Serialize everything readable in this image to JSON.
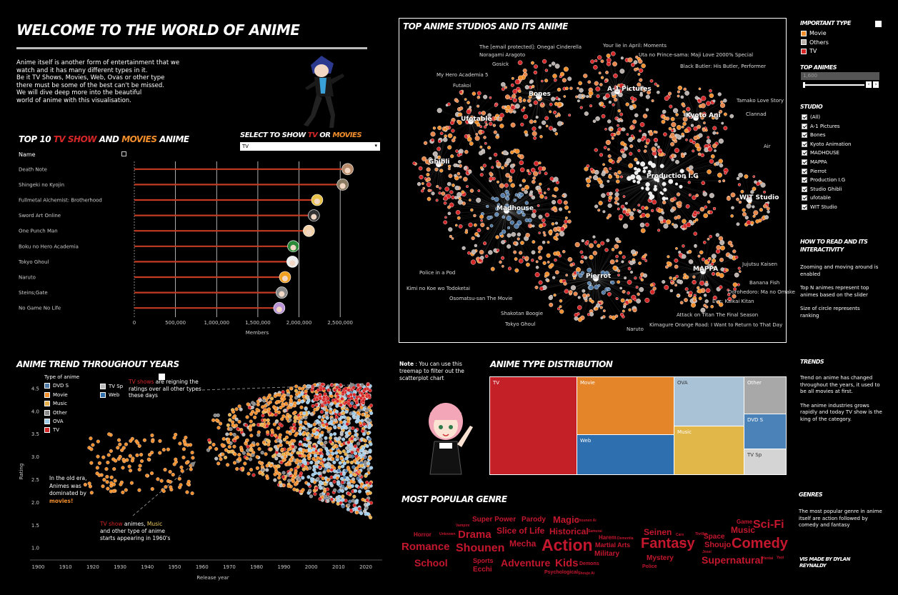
{
  "header": {
    "title": "WELCOME TO THE WORLD OF ANIME",
    "intro": [
      "Anime itself is another form of entertainment that we",
      "watch and it has many different types in it.",
      "Be it TV Shows, Movies, Web, Ovas or other type",
      "there must be some of the best can't be missed.",
      "We will dive deep more into the beautiful",
      "world of anime with this visualisation."
    ]
  },
  "top10": {
    "title_a": "TOP 10 ",
    "title_tv": "TV SHOW",
    "title_and": " AND ",
    "title_movies": "MOVIES",
    "title_b": " ANIME",
    "selector_title_a": "SELECT TO SHOW ",
    "selector_tv": "TV",
    "selector_or": " OR ",
    "selector_movies": "MOVIES",
    "selector_value": "TV",
    "name_header": "Name",
    "x_label": "Members",
    "colors": {
      "bar": "#c23b22",
      "axis": "#888"
    }
  },
  "studios_panel": {
    "title": "TOP ANIME STUDIOS AND ITS ANIME",
    "clusters": [
      "Bones",
      "A-1 Pictures",
      "Ufotable",
      "Kyoto Ani",
      "Ghibli",
      "Production I.G",
      "Madhouse",
      "WIT Studio",
      "MAPPA",
      "Pierrot"
    ],
    "anime_labels": [
      "The [email protected]: Onegai Cinderella",
      "Noragami Aragoto",
      "Gosick",
      "My Hero Academia 5",
      "Futakoi",
      "Your lie in April: Moments",
      "Uta no Prince-sama: Maji Love 2000% Special",
      "Black Butler: His Butler, Performer",
      "Tamako Love Story",
      "Clannad",
      "Air",
      "Jujutsu Kaisen",
      "Banana Fish",
      "Dorohedoro: Ma no Omake",
      "Eve: Kaikai Kitan",
      "Attack on Titan The Final Season",
      "Kimagure Orange Road: I Want to Return to That Day",
      "Naruto",
      "Tokyo Ghoul",
      "Shakotan Boogie",
      "Osomatsu-san The Movie",
      "Kimi no Koe wo Todoketai",
      "Police in a Pod"
    ]
  },
  "sidebar": {
    "important_type_title": "IMPORTANT TYPE",
    "types": [
      {
        "label": "Movie",
        "color": "#f28e2b"
      },
      {
        "label": "Others",
        "color": "#bab0ac"
      },
      {
        "label": "TV",
        "color": "#d62728"
      }
    ],
    "top_animes_title": "TOP ANIMES",
    "top_animes_value": "1,600",
    "studio_title": "STUDIO",
    "studios": [
      "(All)",
      "A-1 Pictures",
      "Bones",
      "Kyoto Animation",
      "MADHOUSE",
      "MAPPA",
      "Pierrot",
      "Production I.G",
      "Studio Ghibli",
      "ufotable",
      "WIT Studio"
    ],
    "how_title": "HOW TO READ AND ITS INTERACTIVITY",
    "how_texts": [
      "Zooming and moving around is enabled",
      "Top N animes represent top animes based on the slider",
      "Size of circle represents ranking"
    ],
    "trends_title": "TRENDS",
    "trends_texts": [
      "Trend on anime has changed throughout the years, it used to be all movies at first.",
      "The anime industries grows rapidly and today TV show is the king of the category."
    ],
    "genres_title": "GENRES",
    "genres_text": "The most popular genre in anime itself are action followed by comedy and fantasy",
    "credit": "VIS MADE BY DYLAN REYNALDY"
  },
  "trend": {
    "title": "ANIME TREND THROUGHOUT YEARS",
    "legend_title": "Type of anime",
    "legend_left": [
      {
        "label": "DVD S",
        "color": "#4e79a7"
      },
      {
        "label": "Movie",
        "color": "#f28e2b"
      },
      {
        "label": "Music",
        "color": "#e8b04a"
      },
      {
        "label": "Other",
        "color": "#888888"
      },
      {
        "label": "OVA",
        "color": "#a0cbe8"
      },
      {
        "label": "TV",
        "color": "#d62728"
      }
    ],
    "legend_right": [
      {
        "label": "TV Sp",
        "color": "#bbbbbb"
      },
      {
        "label": "Web",
        "color": "#2f6fad"
      }
    ],
    "annotation_top_red": "TV shows",
    "annotation_top_rest": " are reigning the ratings over all other types these days",
    "annotation_old_a": "In the old era, Animes was dominated by ",
    "annotation_old_b": "movies!",
    "annotation_1960_red": "TV show",
    "annotation_1960_mid": " animes, ",
    "annotation_1960_yellow": "Music",
    "annotation_1960_rest": " and other type of anime starts appearing in 1960's"
  },
  "type_dist": {
    "note_bold": "Note",
    "note_rest": " : You can use this treemap to filter out the scatterplot chart",
    "title": "ANIME TYPE DISTRIBUTION",
    "cells": [
      {
        "label": "TV",
        "color": "#c42027"
      },
      {
        "label": "Movie",
        "color": "#e5852a"
      },
      {
        "label": "Web",
        "color": "#2e6fb0"
      },
      {
        "label": "OVA",
        "color": "#a9c2d6"
      },
      {
        "label": "Music",
        "color": "#e2b74a"
      },
      {
        "label": "Other",
        "color": "#a8a8a8"
      },
      {
        "label": "DVD S",
        "color": "#4b82b8"
      },
      {
        "label": "TV Sp",
        "color": "#d4d4d4"
      }
    ]
  },
  "genre": {
    "title": "MOST POPULAR GENRE",
    "words": [
      "Super Power",
      "Parody",
      "Magic",
      "Shounen Ai",
      "Horror",
      "Unknown",
      "Vampire",
      "Drama",
      "Slice of Life",
      "Historical",
      "Samurai",
      "Romance",
      "Shounen",
      "Mecha",
      "Action",
      "Martial Arts",
      "Harem",
      "Dementia",
      "Military",
      "School",
      "Sports",
      "Ecchi",
      "Adventure",
      "Kids",
      "Demons",
      "Psychological",
      "Shoujo Ai",
      "Seinen",
      "Cars",
      "Thriller",
      "Fantasy",
      "Yuri",
      "Space",
      "Shoujo",
      "Josei",
      "Game",
      "Music",
      "Sci-Fi",
      "Comedy",
      "Mystery",
      "Police",
      "Supernatural",
      "Hentai",
      "Yaoi"
    ]
  },
  "chart_data": [
    {
      "type": "bar",
      "title": "TOP 10 TV SHOW AND MOVIES ANIME",
      "categories": [
        "Death Note",
        "Shingeki no Kyojin",
        "Fullmetal Alchemist: Brotherhood",
        "Sword Art Online",
        "One Punch Man",
        "Boku no Hero Academia",
        "Tokyo Ghoul",
        "Naruto",
        "Steins;Gate",
        "No Game No Life"
      ],
      "values": [
        2590000,
        2530000,
        2220000,
        2180000,
        2120000,
        1930000,
        1920000,
        1830000,
        1790000,
        1760000
      ],
      "xlabel": "Members",
      "xlim": [
        0,
        2750000
      ],
      "ticks": [
        "0",
        "500,000",
        "1,000,000",
        "1,500,000",
        "2,000,000",
        "2,500,000"
      ],
      "grid": true
    },
    {
      "type": "scatter",
      "title": "ANIME TREND THROUGHOUT YEARS",
      "xlabel": "Release year",
      "ylabel": "Rating",
      "xlim": [
        1897,
        2026
      ],
      "ylim": [
        0.8,
        4.75
      ],
      "xticks": [
        "1900",
        "1910",
        "1920",
        "1930",
        "1940",
        "1950",
        "1960",
        "1970",
        "1980",
        "1990",
        "2000",
        "2010",
        "2020"
      ],
      "yticks": [
        "1.0",
        "1.5",
        "2.0",
        "2.5",
        "3.0",
        "3.5",
        "4.0",
        "4.5"
      ]
    },
    {
      "type": "table",
      "title": "ANIME TYPE DISTRIBUTION",
      "categories": [
        "TV",
        "Movie",
        "Web",
        "OVA",
        "Music",
        "Other",
        "DVD S",
        "TV Sp"
      ]
    }
  ]
}
